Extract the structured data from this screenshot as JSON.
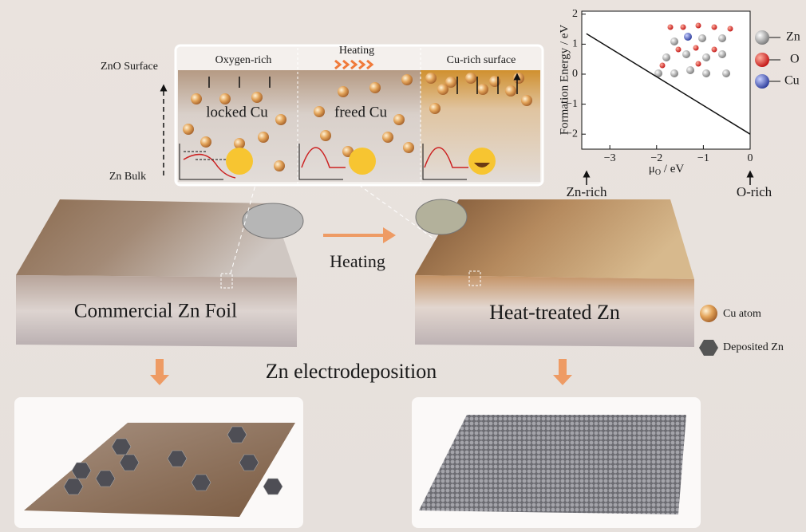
{
  "left_axis": {
    "top": "ZnO Surface",
    "bottom": "Zn Bulk"
  },
  "top_panel": {
    "sections": [
      {
        "title": "Oxygen-rich",
        "label": "locked Cu"
      },
      {
        "title": "Heating",
        "label": "freed Cu"
      },
      {
        "title": "Cu-rich surface"
      }
    ]
  },
  "inset_chart": {
    "type": "line",
    "y_label": "Formation Energy / eV",
    "x_label": [
      "μ",
      "O",
      " / eV"
    ],
    "x": [
      -3.5,
      0
    ],
    "values": [
      1.35,
      -2.0
    ],
    "color": "#111111",
    "xlim": [
      -3.6,
      0
    ],
    "ylim": [
      -2.5,
      2.1
    ],
    "xticks": [
      {
        "value": -3,
        "label": "−3"
      },
      {
        "value": -2,
        "label": "−2"
      },
      {
        "value": -1,
        "label": "−1"
      },
      0
    ],
    "yticks": [
      {
        "value": -2,
        "label": "−2"
      },
      {
        "value": -1,
        "label": "−1"
      },
      0,
      1,
      2
    ],
    "legend": [
      "Zn",
      "O",
      "Cu"
    ],
    "notes": [
      "Zn-rich",
      "O-rich"
    ]
  },
  "slabs": [
    "Commercial Zn Foil",
    "Heat-treated Zn"
  ],
  "heating": "Heating",
  "process": "Zn electrodeposition",
  "key": [
    "Cu atom",
    "Deposited Zn"
  ]
}
